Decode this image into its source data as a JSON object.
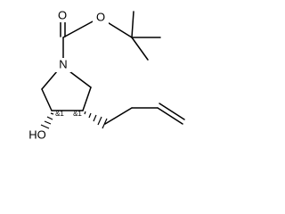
{
  "atoms": [
    "O",
    "O",
    "N",
    "HO"
  ],
  "stereo_labels": [
    "&1",
    "&1"
  ]
}
